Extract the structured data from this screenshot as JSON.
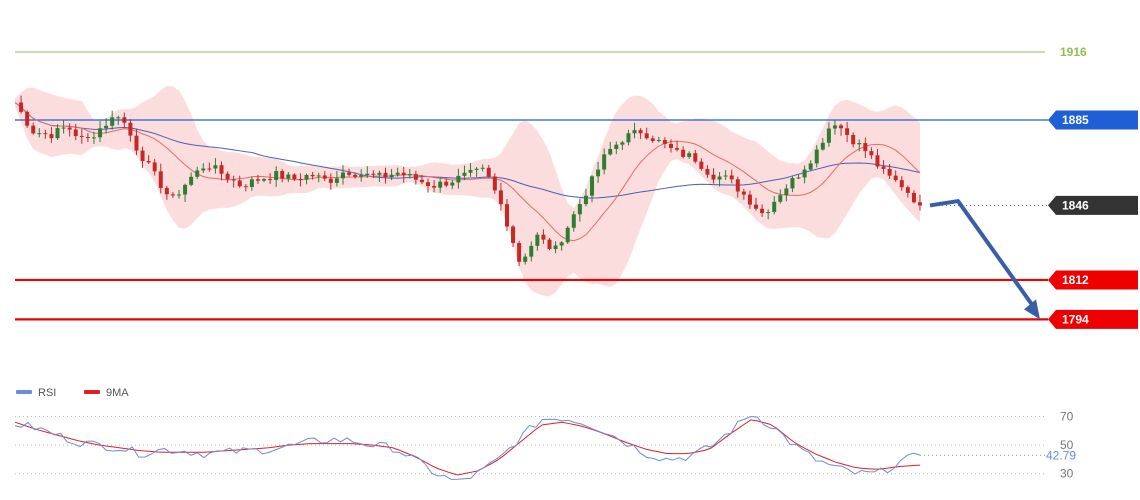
{
  "chart_data": {
    "type": "candlestick",
    "price_axis": {
      "range": [
        1770,
        1937
      ]
    },
    "levels": [
      {
        "name": "level-1916",
        "label": "1916",
        "value": 1916,
        "color": "#8cc151",
        "style": "thin-line-text"
      },
      {
        "name": "level-1885",
        "label": "1885",
        "value": 1885,
        "color": "#1f5fd6",
        "style": "blue-tag"
      },
      {
        "name": "level-1846",
        "label": "1846",
        "value": 1846,
        "color": "#333333",
        "style": "dark-tag-dotted"
      },
      {
        "name": "level-1812",
        "label": "1812",
        "value": 1812,
        "color": "#ee0000",
        "style": "red-tag-thick"
      },
      {
        "name": "level-1794",
        "label": "1794",
        "value": 1794,
        "color": "#ee0000",
        "style": "red-tag-thick"
      }
    ],
    "forecast_arrow": {
      "from": 1846,
      "via": 1848,
      "to": 1794,
      "color": "#3a5da8"
    },
    "colors": {
      "bull": "#2e7d32",
      "bear": "#c62828",
      "band": "#fbd4d4",
      "slow_ma": "#4a5fb5",
      "fast_ma": "#e46b6b"
    },
    "price_anchors": [
      1893,
      1880,
      1878,
      1882,
      1875,
      1882,
      1888,
      1872,
      1860,
      1848,
      1858,
      1865,
      1860,
      1855,
      1858,
      1860,
      1858,
      1860,
      1857,
      1862,
      1860,
      1859,
      1861,
      1858,
      1855,
      1857,
      1860,
      1862,
      1845,
      1820,
      1832,
      1825,
      1840,
      1855,
      1870,
      1877,
      1880,
      1875,
      1870,
      1868,
      1860,
      1858,
      1850,
      1842,
      1852,
      1860,
      1870,
      1885,
      1877,
      1870,
      1860,
      1855,
      1846
    ],
    "rsi_panel": {
      "legend": [
        {
          "name": "RSI",
          "color": "#6b8ae0"
        },
        {
          "name": "9MA",
          "color": "#e02020"
        }
      ],
      "ticks": [
        "70",
        "50",
        "30"
      ],
      "tick_values": [
        70,
        50,
        30
      ],
      "range": [
        20,
        78
      ],
      "current_label": "42.79",
      "current_value": 42.79,
      "rsi_anchors": [
        65,
        62,
        57,
        52,
        50,
        48,
        44,
        47,
        46,
        44,
        45,
        46,
        47,
        49,
        52,
        54,
        53,
        50,
        48,
        40,
        30,
        24,
        30,
        40,
        55,
        68,
        69,
        66,
        60,
        52,
        44,
        40,
        42,
        48,
        60,
        72,
        63,
        50,
        40,
        34,
        30,
        30,
        38,
        43
      ],
      "ma_anchors": [
        66,
        61,
        57,
        53,
        50,
        48,
        46,
        45,
        45,
        45,
        46,
        47,
        48,
        50,
        51,
        51,
        51,
        50,
        48,
        42,
        34,
        29,
        32,
        40,
        52,
        64,
        66,
        63,
        58,
        52,
        47,
        44,
        44,
        47,
        58,
        68,
        64,
        52,
        44,
        38,
        34,
        33,
        35,
        36
      ]
    }
  }
}
